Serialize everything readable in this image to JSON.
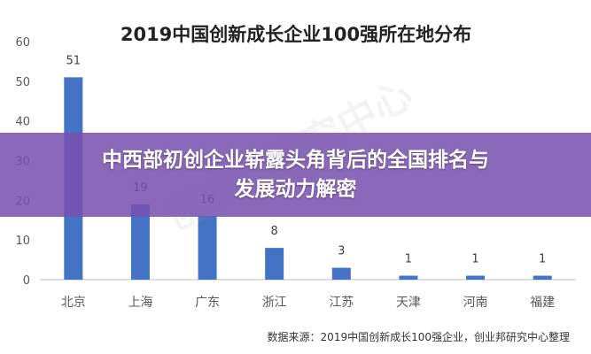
{
  "chart_data": {
    "type": "bar",
    "title": "2019中国创新成长企业100强所在地分布",
    "categories": [
      "北京",
      "上海",
      "广东",
      "浙江",
      "江苏",
      "天津",
      "河南",
      "福建"
    ],
    "values": [
      51,
      19,
      16,
      8,
      3,
      1,
      1,
      1
    ],
    "ylim": [
      0,
      60
    ],
    "yticks": [
      "0",
      "10",
      "20",
      "30",
      "40",
      "50",
      "60"
    ],
    "grid": false,
    "bar_color": "#4472c4",
    "source": "数据来源：2019中国创新成长100强企业，创业邦研究中心整理"
  },
  "watermark": "创业邦研究中心",
  "banner": {
    "line1": "中西部初创企业崭露头角背后的全国排名与",
    "line2": "发展动力解密"
  }
}
